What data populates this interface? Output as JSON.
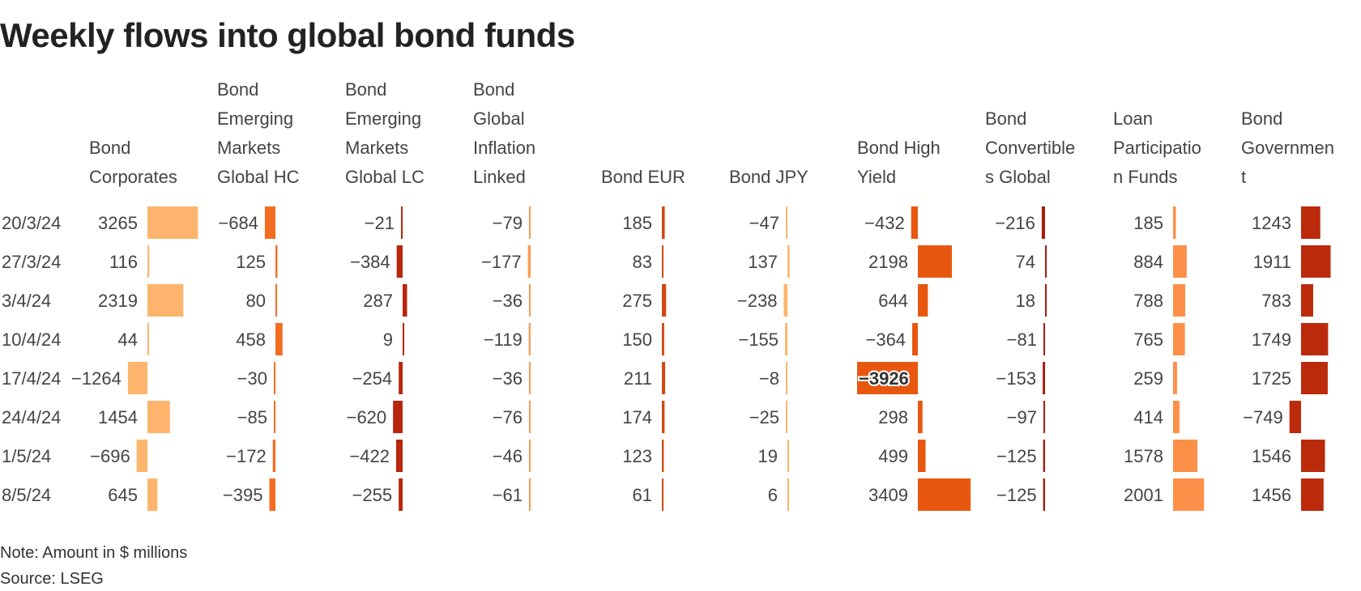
{
  "title": "Weekly flows into global bond funds",
  "note": "Note: Amount in $ millions",
  "source": "Source: LSEG",
  "chart_data": {
    "type": "table",
    "rows": [
      "20/3/24",
      "27/3/24",
      "3/4/24",
      "10/4/24",
      "17/4/24",
      "24/4/24",
      "1/5/24",
      "8/5/24"
    ],
    "columns": [
      {
        "header": [
          "Bond",
          "Corporates"
        ],
        "color": "#fdb46c",
        "values": [
          3265,
          116,
          2319,
          44,
          -1264,
          1454,
          -696,
          645
        ]
      },
      {
        "header": [
          "Bond",
          "Emerging",
          "Markets",
          "Global HC"
        ],
        "color": "#f26d21",
        "values": [
          -684,
          125,
          80,
          458,
          -30,
          -85,
          -172,
          -395
        ]
      },
      {
        "header": [
          "Bond",
          "Emerging",
          "Markets",
          "Global LC"
        ],
        "color": "#b8260c",
        "values": [
          -21,
          -384,
          287,
          9,
          -254,
          -620,
          -422,
          -255
        ]
      },
      {
        "header": [
          "Bond",
          "Global",
          "Inflation",
          "Linked"
        ],
        "color": "#fd9a4e",
        "values": [
          -79,
          -177,
          -36,
          -119,
          -36,
          -76,
          -46,
          -61
        ]
      },
      {
        "header": [
          "Bond EUR"
        ],
        "color": "#d14910",
        "values": [
          185,
          83,
          275,
          150,
          211,
          174,
          123,
          61
        ]
      },
      {
        "header": [
          "Bond JPY"
        ],
        "color": "#fdb46c",
        "values": [
          -47,
          137,
          -238,
          -155,
          -8,
          -25,
          19,
          6
        ]
      },
      {
        "header": [
          "Bond High",
          "Yield"
        ],
        "color": "#e8570f",
        "values": [
          -432,
          2198,
          644,
          -364,
          -3926,
          298,
          499,
          3409
        ]
      },
      {
        "header": [
          "Bond",
          "Convertible",
          "s Global"
        ],
        "color": "#a81c0c",
        "values": [
          -216,
          74,
          18,
          -81,
          -153,
          -97,
          -125,
          -125
        ]
      },
      {
        "header": [
          "Loan",
          "Participatio",
          "n Funds"
        ],
        "color": "#fd9048",
        "values": [
          185,
          884,
          788,
          765,
          259,
          414,
          1578,
          2001
        ]
      },
      {
        "header": [
          "Bond",
          "Governmen",
          "t"
        ],
        "color": "#bc2a0c",
        "values": [
          1243,
          1911,
          783,
          1749,
          1725,
          -749,
          1546,
          1456
        ]
      }
    ]
  }
}
